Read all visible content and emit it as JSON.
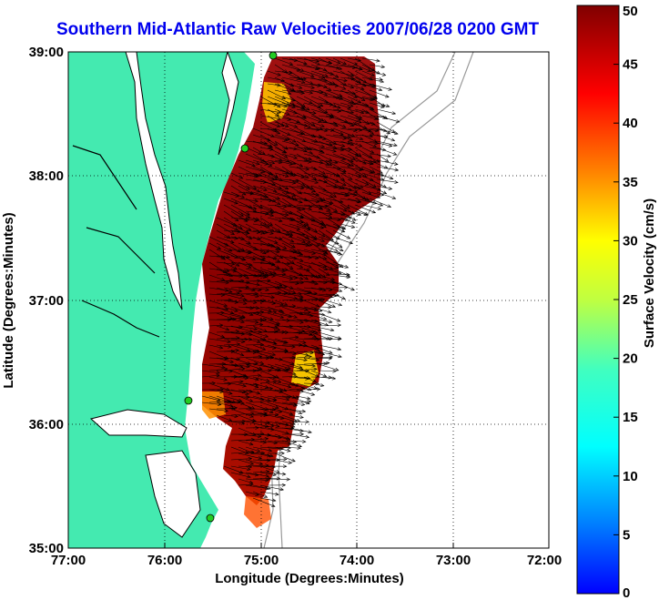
{
  "title": "Southern Mid-Atlantic Raw Velocities 2007/06/28 0200 GMT",
  "axes": {
    "xlabel": "Longitude (Degrees:Minutes)",
    "ylabel": "Latitude (Degrees:Minutes)",
    "x_ticks": [
      "77:00",
      "76:00",
      "75:00",
      "74:00",
      "73:00",
      "72:00"
    ],
    "y_ticks": [
      "39:00",
      "38:00",
      "37:00",
      "36:00",
      "35:00"
    ]
  },
  "colorbar": {
    "label": "Surface Velocity (cm/s)",
    "ticks": [
      "50",
      "45",
      "40",
      "35",
      "30",
      "25",
      "20",
      "15",
      "10",
      "5",
      "0"
    ],
    "min": 0,
    "max": 50
  },
  "colors": {
    "land": "#44eab0",
    "title": "#0000ee",
    "vector": "#000000",
    "station": "#22cc22",
    "bathymetry": "#999999"
  }
}
